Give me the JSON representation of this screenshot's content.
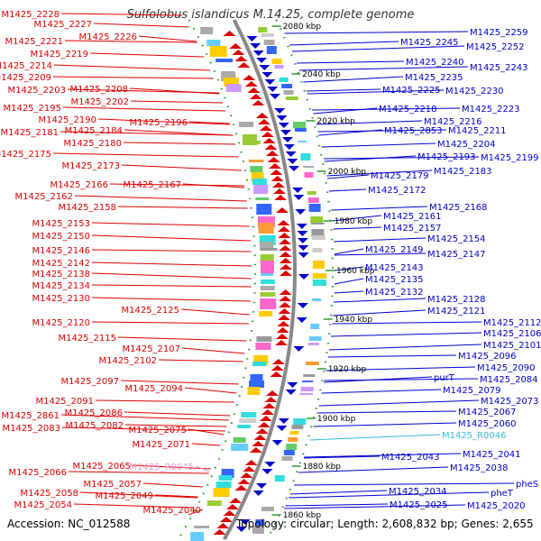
{
  "title": "Sulfolobus islandicus M.14.25, complete genome",
  "footer": {
    "accession": "Accession: NC_012588",
    "summary": "Topology: circular; Length: 2,608,832 bp; Genes: 2,655"
  },
  "colors": {
    "forward_genes": "#dd0000",
    "reverse_genes": "#0000cc",
    "rna_label": "#ee99cc",
    "rna_label_right": "#33bbdd",
    "backbone": "#888888",
    "tick_marks": "#339933"
  },
  "scale_ticks": [
    "2080 kbp",
    "2040 kbp",
    "2020 kbp",
    "2000 kbp",
    "1980 kbp",
    "1960 kbp",
    "1940 kbp",
    "1920 kbp",
    "1900 kbp",
    "1880 kbp",
    "1860 kbp"
  ],
  "left_labels": [
    {
      "text": "M1425_2228",
      "color": "red"
    },
    {
      "text": "M1425_2227",
      "color": "red"
    },
    {
      "text": "M1425_2226",
      "color": "red"
    },
    {
      "text": "M1425_2221",
      "color": "red"
    },
    {
      "text": "M1425_2219",
      "color": "red"
    },
    {
      "text": "M1425_2214",
      "color": "red"
    },
    {
      "text": "M1425_2209",
      "color": "red"
    },
    {
      "text": "M1425_2203",
      "color": "red"
    },
    {
      "text": "M1425_2208",
      "color": "red"
    },
    {
      "text": "M1425_2202",
      "color": "red"
    },
    {
      "text": "M1425_2195",
      "color": "red"
    },
    {
      "text": "M1425_2190",
      "color": "red"
    },
    {
      "text": "M1425_2196",
      "color": "red"
    },
    {
      "text": "M1425_2181",
      "color": "red"
    },
    {
      "text": "M1425_2184",
      "color": "red"
    },
    {
      "text": "M1425_2180",
      "color": "red"
    },
    {
      "text": "M1425_2175",
      "color": "red"
    },
    {
      "text": "M1425_2173",
      "color": "red"
    },
    {
      "text": "M1425_2166",
      "color": "red"
    },
    {
      "text": "M1425_2167",
      "color": "red"
    },
    {
      "text": "M1425_2162",
      "color": "red"
    },
    {
      "text": "M1425_2158",
      "color": "red"
    },
    {
      "text": "M1425_2153",
      "color": "red"
    },
    {
      "text": "M1425_2150",
      "color": "red"
    },
    {
      "text": "M1425_2146",
      "color": "red"
    },
    {
      "text": "M1425_2142",
      "color": "red"
    },
    {
      "text": "M1425_2138",
      "color": "red"
    },
    {
      "text": "M1425_2134",
      "color": "red"
    },
    {
      "text": "M1425_2130",
      "color": "red"
    },
    {
      "text": "M1425_2125",
      "color": "red"
    },
    {
      "text": "M1425_2120",
      "color": "red"
    },
    {
      "text": "M1425_2115",
      "color": "red"
    },
    {
      "text": "M1425_2107",
      "color": "red"
    },
    {
      "text": "M1425_2102",
      "color": "red"
    },
    {
      "text": "M1425_2097",
      "color": "red"
    },
    {
      "text": "M1425_2094",
      "color": "red"
    },
    {
      "text": "M1425_2091",
      "color": "red"
    },
    {
      "text": "M1425_2086",
      "color": "red"
    },
    {
      "text": "M1425_2861",
      "color": "red"
    },
    {
      "text": "M1425_2082",
      "color": "red"
    },
    {
      "text": "M1425_2083",
      "color": "red"
    },
    {
      "text": "M1425_2075",
      "color": "red"
    },
    {
      "text": "M1425_2071",
      "color": "red"
    },
    {
      "text": "M1425_2065",
      "color": "red"
    },
    {
      "text": "M1425_R0045",
      "color": "pink"
    },
    {
      "text": "M1425_2066",
      "color": "red"
    },
    {
      "text": "M1425_2057",
      "color": "red"
    },
    {
      "text": "M1425_2058",
      "color": "red"
    },
    {
      "text": "M1425_2049",
      "color": "red"
    },
    {
      "text": "M1425_2054",
      "color": "red"
    },
    {
      "text": "M1425_2040",
      "color": "red"
    }
  ],
  "right_labels": [
    {
      "text": "M1425_2259",
      "color": "blue"
    },
    {
      "text": "M1425_2245",
      "color": "blue"
    },
    {
      "text": "M1425_2252",
      "color": "blue"
    },
    {
      "text": "M1425_2240",
      "color": "blue"
    },
    {
      "text": "M1425_2243",
      "color": "blue"
    },
    {
      "text": "M1425_2235",
      "color": "blue"
    },
    {
      "text": "M1425_2225",
      "color": "blue"
    },
    {
      "text": "M1425_2230",
      "color": "blue"
    },
    {
      "text": "M1425_2218",
      "color": "blue"
    },
    {
      "text": "M1425_2223",
      "color": "blue"
    },
    {
      "text": "M1425_2216",
      "color": "blue"
    },
    {
      "text": "M1425_2853",
      "color": "blue"
    },
    {
      "text": "M1425_2211",
      "color": "blue"
    },
    {
      "text": "M1425_2204",
      "color": "blue"
    },
    {
      "text": "M1425_2193",
      "color": "blue"
    },
    {
      "text": "M1425_2199",
      "color": "blue"
    },
    {
      "text": "M1425_2179",
      "color": "blue"
    },
    {
      "text": "M1425_2183",
      "color": "blue"
    },
    {
      "text": "M1425_2172",
      "color": "blue"
    },
    {
      "text": "M1425_2168",
      "color": "blue"
    },
    {
      "text": "M1425_2161",
      "color": "blue"
    },
    {
      "text": "M1425_2157",
      "color": "blue"
    },
    {
      "text": "M1425_2154",
      "color": "blue"
    },
    {
      "text": "M1425_2149",
      "color": "blue"
    },
    {
      "text": "M1425_2147",
      "color": "blue"
    },
    {
      "text": "M1425_2143",
      "color": "blue"
    },
    {
      "text": "M1425_2135",
      "color": "blue"
    },
    {
      "text": "M1425_2132",
      "color": "blue"
    },
    {
      "text": "M1425_2128",
      "color": "blue"
    },
    {
      "text": "M1425_2121",
      "color": "blue"
    },
    {
      "text": "M1425_2112",
      "color": "blue"
    },
    {
      "text": "M1425_2106",
      "color": "blue"
    },
    {
      "text": "M1425_2101",
      "color": "blue"
    },
    {
      "text": "M1425_2096",
      "color": "blue"
    },
    {
      "text": "M1425_2090",
      "color": "blue"
    },
    {
      "text": "purT",
      "color": "blue"
    },
    {
      "text": "M1425_2084",
      "color": "blue"
    },
    {
      "text": "M1425_2079",
      "color": "blue"
    },
    {
      "text": "M1425_2073",
      "color": "blue"
    },
    {
      "text": "M1425_2067",
      "color": "blue"
    },
    {
      "text": "M1425_2060",
      "color": "blue"
    },
    {
      "text": "M1425_R0046",
      "color": "cyan"
    },
    {
      "text": "M1425_2043",
      "color": "blue"
    },
    {
      "text": "M1425_2041",
      "color": "blue"
    },
    {
      "text": "M1425_2038",
      "color": "blue"
    },
    {
      "text": "pheS",
      "color": "blue"
    },
    {
      "text": "M1425_2034",
      "color": "blue"
    },
    {
      "text": "pheT",
      "color": "blue"
    },
    {
      "text": "M1425_2025",
      "color": "blue"
    },
    {
      "text": "M1425_2020",
      "color": "blue"
    }
  ]
}
